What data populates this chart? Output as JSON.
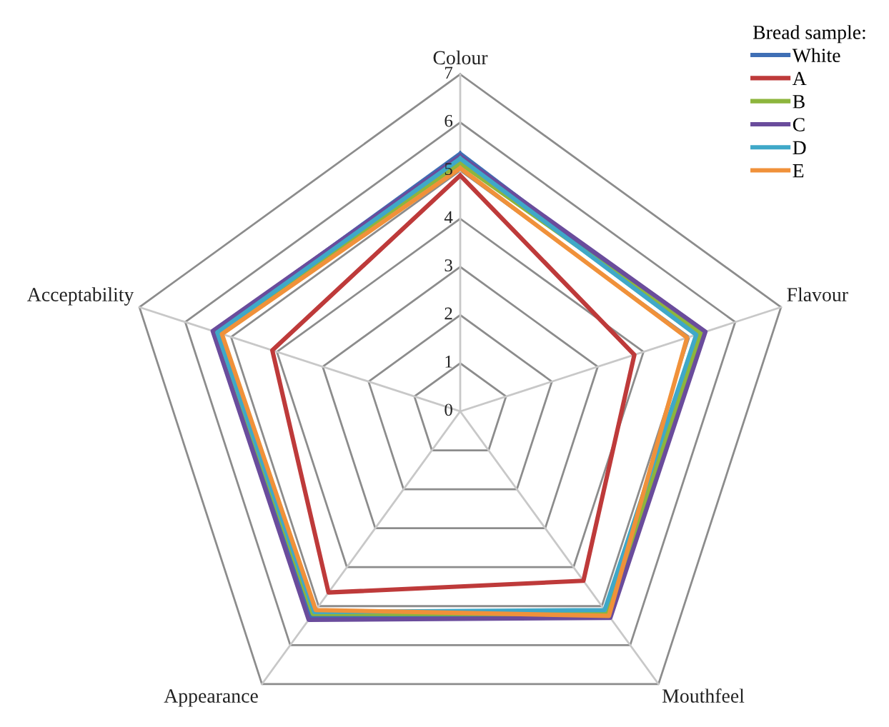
{
  "chart_data": {
    "type": "radar",
    "categories": [
      "Colour",
      "Flavour",
      "Mouthfeel",
      "Appearance",
      "Acceptability"
    ],
    "ylim": [
      0,
      7
    ],
    "yticks": [
      0,
      1,
      2,
      3,
      4,
      5,
      6,
      7
    ],
    "grid": true,
    "legend": "top right",
    "legend_title": "Bread sample:",
    "series": [
      {
        "name": "White",
        "color": "#3f6fb5",
        "values": [
          5.35,
          5.2,
          5.25,
          5.3,
          5.35
        ]
      },
      {
        "name": "A",
        "color": "#be3a3a",
        "values": [
          4.9,
          3.8,
          4.35,
          4.65,
          4.1
        ]
      },
      {
        "name": "B",
        "color": "#8db53d",
        "values": [
          5.15,
          5.25,
          5.2,
          5.2,
          5.3
        ]
      },
      {
        "name": "C",
        "color": "#6a4c9c",
        "values": [
          5.3,
          5.35,
          5.3,
          5.35,
          5.4
        ]
      },
      {
        "name": "D",
        "color": "#3fa8c8",
        "values": [
          5.25,
          5.15,
          5.1,
          5.15,
          5.3
        ]
      },
      {
        "name": "E",
        "color": "#f0913a",
        "values": [
          5.05,
          4.95,
          5.25,
          5.1,
          5.2
        ]
      }
    ]
  }
}
